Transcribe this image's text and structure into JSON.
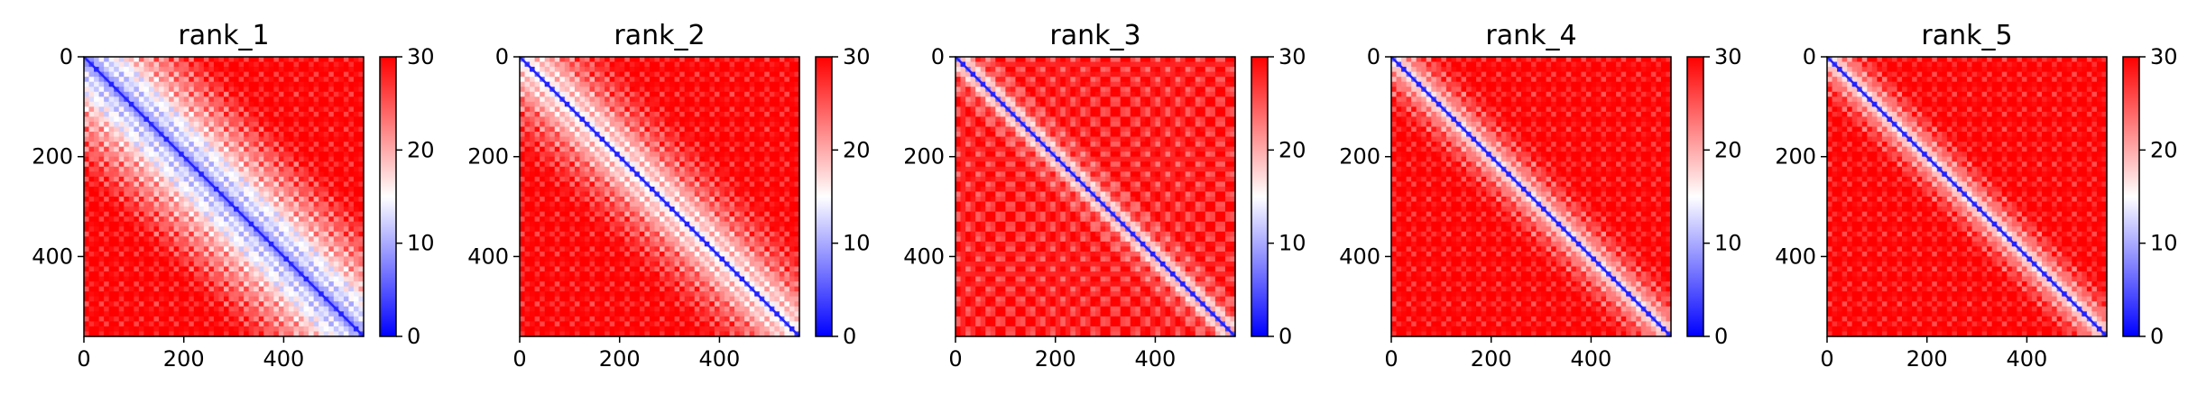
{
  "chart_data": [
    {
      "type": "heatmap",
      "title": "rank_1",
      "xlabel": "",
      "ylabel": "",
      "xticks": [
        "0",
        "200",
        "400"
      ],
      "yticks": [
        "0",
        "200",
        "400"
      ],
      "xlim": [
        0,
        560
      ],
      "ylim": [
        560,
        0
      ],
      "colorbar": {
        "ticks": [
          "0",
          "10",
          "20",
          "30"
        ],
        "range": [
          0,
          30
        ],
        "colormap": "bwr"
      },
      "pattern": {
        "diagonal_value": 2,
        "near_diagonal_value": 12,
        "far_value": 30,
        "band_width_rows": 250,
        "texture_period_rows": 28
      }
    },
    {
      "type": "heatmap",
      "title": "rank_2",
      "xlabel": "",
      "ylabel": "",
      "xticks": [
        "0",
        "200",
        "400"
      ],
      "yticks": [
        "0",
        "200",
        "400"
      ],
      "xlim": [
        0,
        560
      ],
      "ylim": [
        560,
        0
      ],
      "colorbar": {
        "ticks": [
          "0",
          "10",
          "20",
          "30"
        ],
        "range": [
          0,
          30
        ],
        "colormap": "bwr"
      },
      "pattern": {
        "diagonal_value": 2,
        "near_diagonal_value": 18,
        "far_value": 30,
        "band_width_rows": 190,
        "texture_period_rows": 28
      }
    },
    {
      "type": "heatmap",
      "title": "rank_3",
      "xlabel": "",
      "ylabel": "",
      "xticks": [
        "0",
        "200",
        "400"
      ],
      "yticks": [
        "0",
        "200",
        "400"
      ],
      "xlim": [
        0,
        560
      ],
      "ylim": [
        560,
        0
      ],
      "colorbar": {
        "ticks": [
          "0",
          "10",
          "20",
          "30"
        ],
        "range": [
          0,
          30
        ],
        "colormap": "bwr"
      },
      "pattern": {
        "diagonal_value": 2,
        "near_diagonal_value": 20,
        "far_value": 28,
        "band_width_rows": 80,
        "texture_period_rows": 42
      }
    },
    {
      "type": "heatmap",
      "title": "rank_4",
      "xlabel": "",
      "ylabel": "",
      "xticks": [
        "0",
        "200",
        "400"
      ],
      "yticks": [
        "0",
        "200",
        "400"
      ],
      "xlim": [
        0,
        560
      ],
      "ylim": [
        560,
        0
      ],
      "colorbar": {
        "ticks": [
          "0",
          "10",
          "20",
          "30"
        ],
        "range": [
          0,
          30
        ],
        "colormap": "bwr"
      },
      "pattern": {
        "diagonal_value": 2,
        "near_diagonal_value": 20,
        "far_value": 30,
        "band_width_rows": 110,
        "texture_period_rows": 28
      }
    },
    {
      "type": "heatmap",
      "title": "rank_5",
      "xlabel": "",
      "ylabel": "",
      "xticks": [
        "0",
        "200",
        "400"
      ],
      "yticks": [
        "0",
        "200",
        "400"
      ],
      "xlim": [
        0,
        560
      ],
      "ylim": [
        560,
        0
      ],
      "colorbar": {
        "ticks": [
          "0",
          "10",
          "20",
          "30"
        ],
        "range": [
          0,
          30
        ],
        "colormap": "bwr"
      },
      "pattern": {
        "diagonal_value": 2,
        "near_diagonal_value": 20,
        "far_value": 30,
        "band_width_rows": 100,
        "texture_period_rows": 28
      }
    }
  ]
}
